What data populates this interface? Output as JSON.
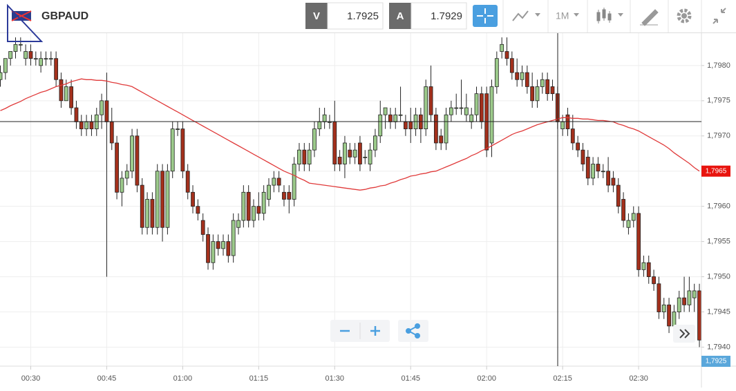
{
  "toolbar": {
    "symbol": "GBPAUD",
    "bid_tag": "V",
    "bid": 1.7925,
    "ask_tag": "A",
    "ask": 1.7929,
    "timeframe": "1M"
  },
  "chart_data": {
    "type": "candlestick",
    "categories": [
      null,
      null,
      null,
      null,
      null,
      null,
      "00:30",
      null,
      null,
      null,
      null,
      null,
      null,
      null,
      null,
      null,
      null,
      null,
      null,
      null,
      null,
      "00:45",
      null,
      null,
      null,
      null,
      null,
      null,
      null,
      null,
      null,
      null,
      null,
      null,
      null,
      null,
      "01:00",
      null,
      null,
      null,
      null,
      null,
      null,
      null,
      null,
      null,
      null,
      null,
      null,
      null,
      null,
      "01:15",
      null,
      null,
      null,
      null,
      null,
      null,
      null,
      null,
      null,
      null,
      null,
      null,
      null,
      null,
      "01:30",
      null,
      null,
      null,
      null,
      null,
      null,
      null,
      null,
      null,
      null,
      null,
      null,
      null,
      null,
      "01:45",
      null,
      null,
      null,
      null,
      null,
      null,
      null,
      null,
      null,
      null,
      null,
      null,
      null,
      null,
      "02:00",
      null,
      null,
      null,
      null,
      null,
      null,
      null,
      null,
      null,
      null,
      null,
      null,
      null,
      null,
      "02:15",
      null,
      null,
      null,
      null,
      null,
      null,
      null,
      null,
      null,
      null,
      null,
      null,
      null,
      null,
      "02:30",
      null,
      null,
      null,
      null,
      null,
      null,
      null,
      null,
      null,
      null,
      null,
      null
    ],
    "ohlc": [
      [
        1.7978,
        1.798,
        1.7977,
        1.7979
      ],
      [
        1.7979,
        1.7981,
        1.7978,
        1.7981
      ],
      [
        1.7981,
        1.7982,
        1.798,
        1.7982
      ],
      [
        1.7982,
        1.7984,
        1.7981,
        1.7983
      ],
      [
        1.7983,
        1.7984,
        1.7982,
        1.7983
      ],
      [
        1.7981,
        1.7983,
        1.798,
        1.7982
      ],
      [
        1.7982,
        1.7983,
        1.798,
        1.7981
      ],
      [
        1.7981,
        1.7982,
        1.798,
        1.7981
      ],
      [
        1.798,
        1.7982,
        1.7979,
        1.7981
      ],
      [
        1.7981,
        1.7982,
        1.798,
        1.7981
      ],
      [
        1.7981,
        1.7982,
        1.798,
        1.7981
      ],
      [
        1.7981,
        1.7982,
        1.7977,
        1.7978
      ],
      [
        1.7978,
        1.7979,
        1.7974,
        1.7975
      ],
      [
        1.7975,
        1.7978,
        1.7975,
        1.7977
      ],
      [
        1.7977,
        1.7978,
        1.7973,
        1.7974
      ],
      [
        1.7974,
        1.7975,
        1.7971,
        1.7972
      ],
      [
        1.7972,
        1.7973,
        1.797,
        1.7971
      ],
      [
        1.7971,
        1.7973,
        1.797,
        1.7972
      ],
      [
        1.7972,
        1.7973,
        1.797,
        1.7971
      ],
      [
        1.7971,
        1.7974,
        1.797,
        1.7973
      ],
      [
        1.7973,
        1.7976,
        1.7971,
        1.7975
      ],
      [
        1.7975,
        1.7979,
        1.795,
        1.7972
      ],
      [
        1.7972,
        1.7974,
        1.7968,
        1.7969
      ],
      [
        1.7969,
        1.797,
        1.7961,
        1.7962
      ],
      [
        1.7962,
        1.7965,
        1.796,
        1.7964
      ],
      [
        1.7964,
        1.7966,
        1.7963,
        1.7965
      ],
      [
        1.7965,
        1.7971,
        1.7964,
        1.797
      ],
      [
        1.797,
        1.7971,
        1.7962,
        1.7963
      ],
      [
        1.7963,
        1.7964,
        1.7956,
        1.7957
      ],
      [
        1.7957,
        1.7962,
        1.7956,
        1.7961
      ],
      [
        1.7961,
        1.7962,
        1.7956,
        1.7957
      ],
      [
        1.7957,
        1.7966,
        1.7956,
        1.7965
      ],
      [
        1.7965,
        1.7966,
        1.7955,
        1.7957
      ],
      [
        1.7957,
        1.7966,
        1.7956,
        1.7965
      ],
      [
        1.7965,
        1.7972,
        1.7964,
        1.7971
      ],
      [
        1.7971,
        1.7972,
        1.797,
        1.7971
      ],
      [
        1.7971,
        1.7972,
        1.7964,
        1.7965
      ],
      [
        1.7965,
        1.7966,
        1.7961,
        1.7962
      ],
      [
        1.7962,
        1.7963,
        1.7959,
        1.796
      ],
      [
        1.796,
        1.7961,
        1.7958,
        1.7959
      ],
      [
        1.7958,
        1.7959,
        1.7955,
        1.7956
      ],
      [
        1.7956,
        1.7957,
        1.7951,
        1.7952
      ],
      [
        1.7952,
        1.7956,
        1.7951,
        1.7955
      ],
      [
        1.7955,
        1.7956,
        1.7953,
        1.7954
      ],
      [
        1.7954,
        1.7956,
        1.7953,
        1.7955
      ],
      [
        1.7955,
        1.7956,
        1.7952,
        1.7953
      ],
      [
        1.7953,
        1.7959,
        1.7952,
        1.7958
      ],
      [
        1.7957,
        1.7959,
        1.7956,
        1.7958
      ],
      [
        1.7958,
        1.7963,
        1.7957,
        1.7962
      ],
      [
        1.7962,
        1.7963,
        1.7957,
        1.7958
      ],
      [
        1.7958,
        1.7961,
        1.7957,
        1.796
      ],
      [
        1.796,
        1.7962,
        1.7958,
        1.7959
      ],
      [
        1.7959,
        1.7963,
        1.7958,
        1.7962
      ],
      [
        1.7961,
        1.7964,
        1.796,
        1.7963
      ],
      [
        1.7963,
        1.7965,
        1.7962,
        1.7964
      ],
      [
        1.7964,
        1.7965,
        1.7962,
        1.7963
      ],
      [
        1.7962,
        1.7963,
        1.796,
        1.7961
      ],
      [
        1.7962,
        1.7963,
        1.7959,
        1.7961
      ],
      [
        1.7961,
        1.7967,
        1.796,
        1.7966
      ],
      [
        1.7966,
        1.7969,
        1.7965,
        1.7968
      ],
      [
        1.7968,
        1.7969,
        1.7965,
        1.7966
      ],
      [
        1.7966,
        1.7969,
        1.7965,
        1.7968
      ],
      [
        1.7968,
        1.7972,
        1.7967,
        1.7971
      ],
      [
        1.7971,
        1.7974,
        1.797,
        1.7972
      ],
      [
        1.7972,
        1.7974,
        1.7971,
        1.7973
      ],
      [
        1.7972,
        1.7973,
        1.7971,
        1.7972
      ],
      [
        1.7972,
        1.7975,
        1.7965,
        1.7966
      ],
      [
        1.7967,
        1.7968,
        1.7965,
        1.7966
      ],
      [
        1.7966,
        1.797,
        1.7964,
        1.7969
      ],
      [
        1.7968,
        1.7969,
        1.7966,
        1.7967
      ],
      [
        1.7967,
        1.7969,
        1.7966,
        1.7968
      ],
      [
        1.7969,
        1.797,
        1.7965,
        1.7966
      ],
      [
        1.7967,
        1.7968,
        1.7966,
        1.7967
      ],
      [
        1.7966,
        1.7969,
        1.7965,
        1.7968
      ],
      [
        1.7968,
        1.7971,
        1.7967,
        1.797
      ],
      [
        1.797,
        1.7975,
        1.7969,
        1.7973
      ],
      [
        1.7973,
        1.7974,
        1.7971,
        1.7974
      ],
      [
        1.7973,
        1.7974,
        1.7971,
        1.7972
      ],
      [
        1.7972,
        1.7974,
        1.7971,
        1.7973
      ],
      [
        1.7973,
        1.7977,
        1.7972,
        1.7973
      ],
      [
        1.7972,
        1.7973,
        1.797,
        1.7971
      ],
      [
        1.7972,
        1.7974,
        1.7969,
        1.7971
      ],
      [
        1.7971,
        1.7974,
        1.797,
        1.7973
      ],
      [
        1.7973,
        1.7974,
        1.7969,
        1.7971
      ],
      [
        1.7971,
        1.7978,
        1.797,
        1.7977
      ],
      [
        1.7977,
        1.798,
        1.7972,
        1.7973
      ],
      [
        1.7973,
        1.7974,
        1.7968,
        1.7969
      ],
      [
        1.797,
        1.7971,
        1.7968,
        1.7969
      ],
      [
        1.7969,
        1.7974,
        1.7968,
        1.7973
      ],
      [
        1.7973,
        1.7975,
        1.7972,
        1.7974
      ],
      [
        1.7974,
        1.7976,
        1.7973,
        1.7974
      ],
      [
        1.7974,
        1.7978,
        1.7973,
        1.7974
      ],
      [
        1.7973,
        1.7976,
        1.7972,
        1.7974
      ],
      [
        1.7972,
        1.7974,
        1.7971,
        1.7973
      ],
      [
        1.7973,
        1.7977,
        1.7972,
        1.7976
      ],
      [
        1.7976,
        1.7977,
        1.7971,
        1.7972
      ],
      [
        1.7976,
        1.7977,
        1.7967,
        1.7968
      ],
      [
        1.7969,
        1.7978,
        1.7967,
        1.7977
      ],
      [
        1.7977,
        1.7982,
        1.7976,
        1.7981
      ],
      [
        1.7982,
        1.7984,
        1.7981,
        1.7983
      ],
      [
        1.7982,
        1.7984,
        1.798,
        1.7981
      ],
      [
        1.7981,
        1.7982,
        1.7978,
        1.7979
      ],
      [
        1.7979,
        1.7981,
        1.7977,
        1.7978
      ],
      [
        1.7978,
        1.798,
        1.7977,
        1.7979
      ],
      [
        1.7979,
        1.798,
        1.7976,
        1.7977
      ],
      [
        1.7977,
        1.7979,
        1.7974,
        1.7975
      ],
      [
        1.7975,
        1.7978,
        1.7974,
        1.7977
      ],
      [
        1.7977,
        1.7979,
        1.7976,
        1.7978
      ],
      [
        1.7978,
        1.7979,
        1.7975,
        1.7976
      ],
      [
        1.7977,
        1.7978,
        1.7975,
        1.7976
      ],
      [
        1.7976,
        1.7977,
        1.7971,
        1.7972
      ],
      [
        1.7971,
        1.7973,
        1.797,
        1.7972
      ],
      [
        1.7973,
        1.7974,
        1.797,
        1.7971
      ],
      [
        1.7971,
        1.7973,
        1.7968,
        1.7969
      ],
      [
        1.7969,
        1.797,
        1.7967,
        1.7968
      ],
      [
        1.7968,
        1.7969,
        1.7965,
        1.7966
      ],
      [
        1.7967,
        1.7968,
        1.7963,
        1.7964
      ],
      [
        1.7964,
        1.7967,
        1.7963,
        1.7966
      ],
      [
        1.7966,
        1.7967,
        1.7964,
        1.7965
      ],
      [
        1.7965,
        1.7966,
        1.7964,
        1.7965
      ],
      [
        1.7965,
        1.7967,
        1.7962,
        1.7963
      ],
      [
        1.7964,
        1.7965,
        1.7962,
        1.7963
      ],
      [
        1.7963,
        1.7964,
        1.7959,
        1.796
      ],
      [
        1.7961,
        1.7962,
        1.7957,
        1.7958
      ],
      [
        1.7957,
        1.7959,
        1.7956,
        1.7958
      ],
      [
        1.7958,
        1.796,
        1.7957,
        1.7959
      ],
      [
        1.7959,
        1.796,
        1.795,
        1.7951
      ],
      [
        1.7951,
        1.7953,
        1.795,
        1.7952
      ],
      [
        1.7952,
        1.7953,
        1.7949,
        1.795
      ],
      [
        1.795,
        1.7951,
        1.7948,
        1.7949
      ],
      [
        1.7949,
        1.795,
        1.7944,
        1.7945
      ],
      [
        1.7945,
        1.7947,
        1.7944,
        1.7946
      ],
      [
        1.7946,
        1.7947,
        1.7942,
        1.7943
      ],
      [
        1.7943,
        1.7946,
        1.7942,
        1.7945
      ],
      [
        1.7945,
        1.7948,
        1.7944,
        1.7947
      ],
      [
        1.7947,
        1.795,
        1.7945,
        1.7946
      ],
      [
        1.7946,
        1.795,
        1.7945,
        1.7948
      ],
      [
        1.7947,
        1.7949,
        1.7945,
        1.7948
      ],
      [
        1.7948,
        1.7949,
        1.794,
        1.7941
      ]
    ],
    "up_color": "#9cca8b",
    "down_color": "#a3301c",
    "ma": {
      "color": "#e03a3a",
      "label": "1,7965",
      "values": [
        1.79736,
        1.79739,
        1.79743,
        1.79746,
        1.79749,
        1.79753,
        1.79756,
        1.79759,
        1.79762,
        1.79764,
        1.79767,
        1.7977,
        1.79772,
        1.79774,
        1.79777,
        1.79779,
        1.79781,
        1.7978,
        1.7978,
        1.79779,
        1.79779,
        1.79778,
        1.79776,
        1.79775,
        1.79773,
        1.79772,
        1.7977,
        1.79766,
        1.79762,
        1.79758,
        1.79754,
        1.7975,
        1.79746,
        1.79742,
        1.79738,
        1.79734,
        1.7973,
        1.79726,
        1.79722,
        1.79718,
        1.79714,
        1.7971,
        1.79706,
        1.79702,
        1.79698,
        1.79694,
        1.7969,
        1.79686,
        1.79682,
        1.79678,
        1.79674,
        1.7967,
        1.79666,
        1.79662,
        1.79658,
        1.79654,
        1.7965,
        1.79647,
        1.79644,
        1.7964,
        1.79637,
        1.79633,
        1.79632,
        1.79631,
        1.7963,
        1.79629,
        1.79628,
        1.79627,
        1.79626,
        1.79625,
        1.79624,
        1.79623,
        1.79624,
        1.79626,
        1.79627,
        1.79629,
        1.7963,
        1.79633,
        1.79635,
        1.79638,
        1.7964,
        1.79643,
        1.79644,
        1.79646,
        1.79647,
        1.79649,
        1.7965,
        1.79653,
        1.79656,
        1.79659,
        1.79662,
        1.79665,
        1.79668,
        1.79672,
        1.79675,
        1.79679,
        1.79682,
        1.79686,
        1.7969,
        1.79694,
        1.79698,
        1.79702,
        1.79705,
        1.79707,
        1.7971,
        1.79713,
        1.79716,
        1.79718,
        1.7972,
        1.79722,
        1.79724,
        1.79726,
        1.79726,
        1.79725,
        1.79725,
        1.79724,
        1.79724,
        1.79723,
        1.79722,
        1.79722,
        1.79721,
        1.7972,
        1.79717,
        1.79715,
        1.79712,
        1.7971,
        1.79707,
        1.79703,
        1.79699,
        1.79695,
        1.79691,
        1.79687,
        1.79682,
        1.79676,
        1.79671,
        1.79666,
        1.79661,
        1.79655,
        1.7965
      ]
    },
    "bid_label": "1,7925",
    "ylim": [
      1.79373,
      1.79846
    ],
    "yticks": [
      {
        "value": 1.794,
        "label": "1,7940"
      },
      {
        "value": 1.7945,
        "label": "1,7945"
      },
      {
        "value": 1.795,
        "label": "1,7950"
      },
      {
        "value": 1.7955,
        "label": "1,7955"
      },
      {
        "value": 1.796,
        "label": "1,7960"
      },
      {
        "value": 1.7965,
        "label": "1,7965"
      },
      {
        "value": 1.797,
        "label": "1,7970"
      },
      {
        "value": 1.7975,
        "label": "1,7975"
      },
      {
        "value": 1.798,
        "label": "1,7980"
      }
    ],
    "grid": true
  }
}
